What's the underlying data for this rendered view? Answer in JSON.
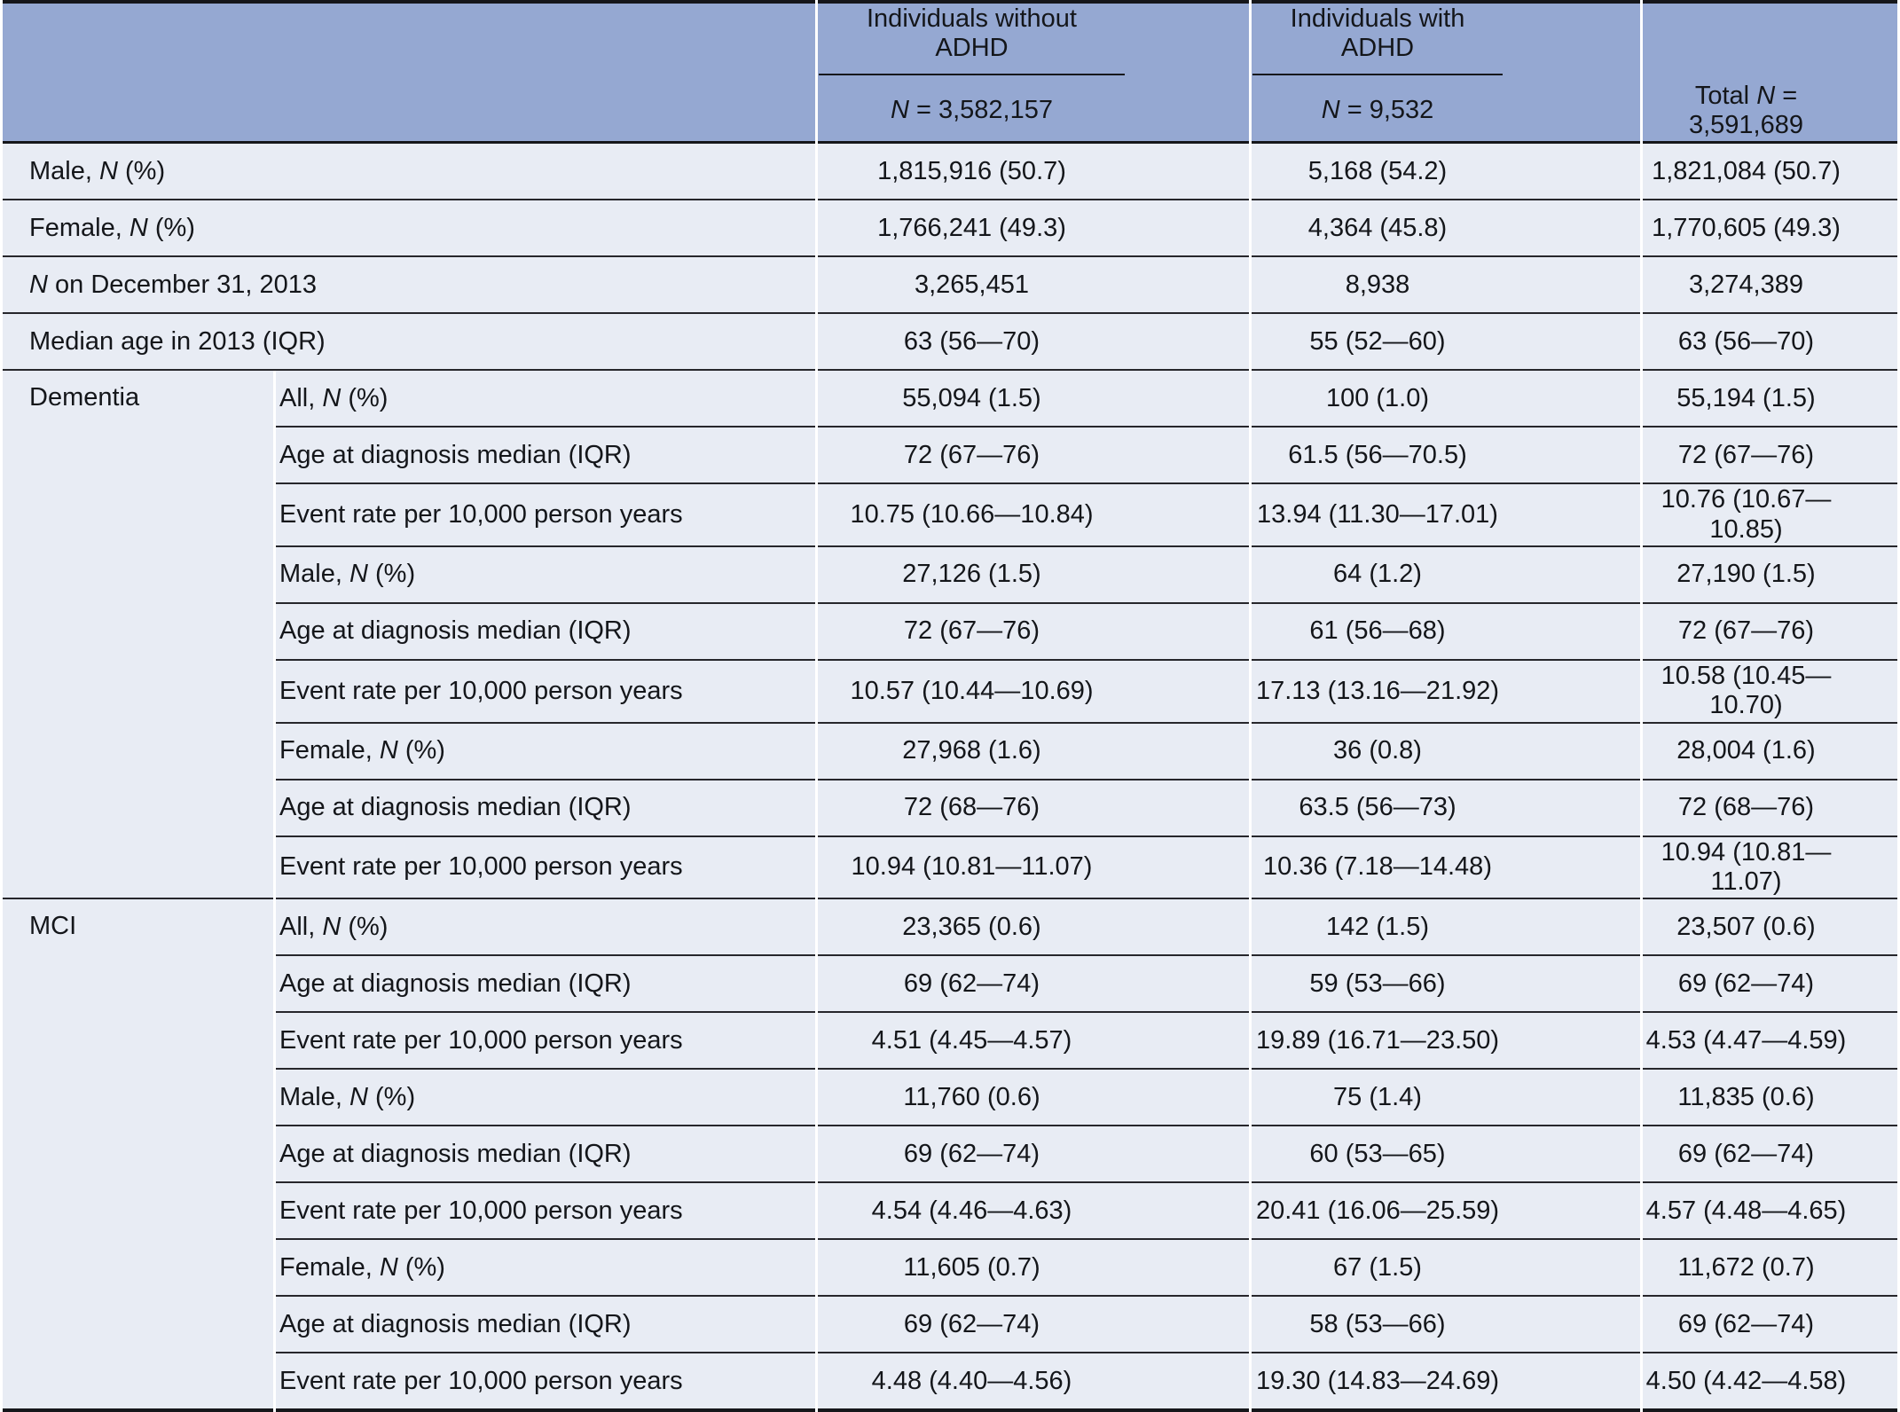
{
  "colors": {
    "header_bg": "#95a8d2",
    "row_bg": "#e8ecf4",
    "rule": "#26262b",
    "rule_dark": "#15161a"
  },
  "table": {
    "header": {
      "col_groups": [
        {
          "title": "Individuals without ADHD",
          "subtitle": "N = 3,582,157"
        },
        {
          "title": "Individuals with ADHD",
          "subtitle": "N = 9,532"
        }
      ],
      "total_label": "Total N = 3,591,689"
    },
    "top_rows": [
      {
        "label": "Male, N (%)",
        "values": [
          "1,815,916 (50.7)",
          "5,168 (54.2)",
          "1,821,084 (50.7)"
        ]
      },
      {
        "label": "Female, N (%)",
        "values": [
          "1,766,241 (49.3)",
          "4,364 (45.8)",
          "1,770,605 (49.3)"
        ]
      },
      {
        "label": "N on December 31, 2013",
        "values": [
          "3,265,451",
          "8,938",
          "3,274,389"
        ]
      },
      {
        "label": "Median age in 2013 (IQR)",
        "values": [
          "63 (56—70)",
          "55 (52—60)",
          "63 (56—70)"
        ]
      }
    ],
    "sections": [
      {
        "label": "Dementia",
        "rows": [
          {
            "sublabel": "All, N (%)",
            "values": [
              "55,094 (1.5)",
              "100 (1.0)",
              "55,194 (1.5)"
            ]
          },
          {
            "sublabel": "Age at diagnosis median (IQR)",
            "values": [
              "72 (67—76)",
              "61.5 (56—70.5)",
              "72 (67—76)"
            ]
          },
          {
            "sublabel": "Event rate per 10,000 person years",
            "values": [
              "10.75 (10.66—10.84)",
              "13.94 (11.30—17.01)",
              "10.76 (10.67—10.85)"
            ]
          },
          {
            "sublabel": "Male, N (%)",
            "values": [
              "27,126 (1.5)",
              "64 (1.2)",
              "27,190 (1.5)"
            ]
          },
          {
            "sublabel": "Age at diagnosis median (IQR)",
            "values": [
              "72 (67—76)",
              "61 (56—68)",
              "72 (67—76)"
            ]
          },
          {
            "sublabel": "Event rate per 10,000 person years",
            "values": [
              "10.57 (10.44—10.69)",
              "17.13 (13.16—21.92)",
              "10.58 (10.45—10.70)"
            ]
          },
          {
            "sublabel": "Female, N (%)",
            "values": [
              "27,968 (1.6)",
              "36 (0.8)",
              "28,004 (1.6)"
            ]
          },
          {
            "sublabel": "Age at diagnosis median (IQR)",
            "values": [
              "72 (68—76)",
              "63.5 (56—73)",
              "72 (68—76)"
            ]
          },
          {
            "sublabel": "Event rate per 10,000 person years",
            "values": [
              "10.94 (10.81—11.07)",
              "10.36 (7.18—14.48)",
              "10.94 (10.81—11.07)"
            ]
          }
        ]
      },
      {
        "label": "MCI",
        "rows": [
          {
            "sublabel": "All, N (%)",
            "values": [
              "23,365 (0.6)",
              "142 (1.5)",
              "23,507 (0.6)"
            ]
          },
          {
            "sublabel": "Age at diagnosis median (IQR)",
            "values": [
              "69 (62—74)",
              "59 (53—66)",
              "69 (62—74)"
            ]
          },
          {
            "sublabel": "Event rate per 10,000 person years",
            "values": [
              "4.51 (4.45—4.57)",
              "19.89 (16.71—23.50)",
              "4.53 (4.47—4.59)"
            ]
          },
          {
            "sublabel": "Male, N (%)",
            "values": [
              "11,760 (0.6)",
              "75 (1.4)",
              "11,835 (0.6)"
            ]
          },
          {
            "sublabel": "Age at diagnosis median (IQR)",
            "values": [
              "69 (62—74)",
              "60 (53—65)",
              "69 (62—74)"
            ]
          },
          {
            "sublabel": "Event rate per 10,000 person years",
            "values": [
              "4.54 (4.46—4.63)",
              "20.41 (16.06—25.59)",
              "4.57 (4.48—4.65)"
            ]
          },
          {
            "sublabel": "Female, N (%)",
            "values": [
              "11,605 (0.7)",
              "67 (1.5)",
              "11,672 (0.7)"
            ]
          },
          {
            "sublabel": "Age at diagnosis median (IQR)",
            "values": [
              "69 (62—74)",
              "58 (53—66)",
              "69 (62—74)"
            ]
          },
          {
            "sublabel": "Event rate per 10,000 person years",
            "values": [
              "4.48 (4.40—4.56)",
              "19.30 (14.83—24.69)",
              "4.50 (4.42—4.58)"
            ]
          }
        ]
      }
    ]
  }
}
